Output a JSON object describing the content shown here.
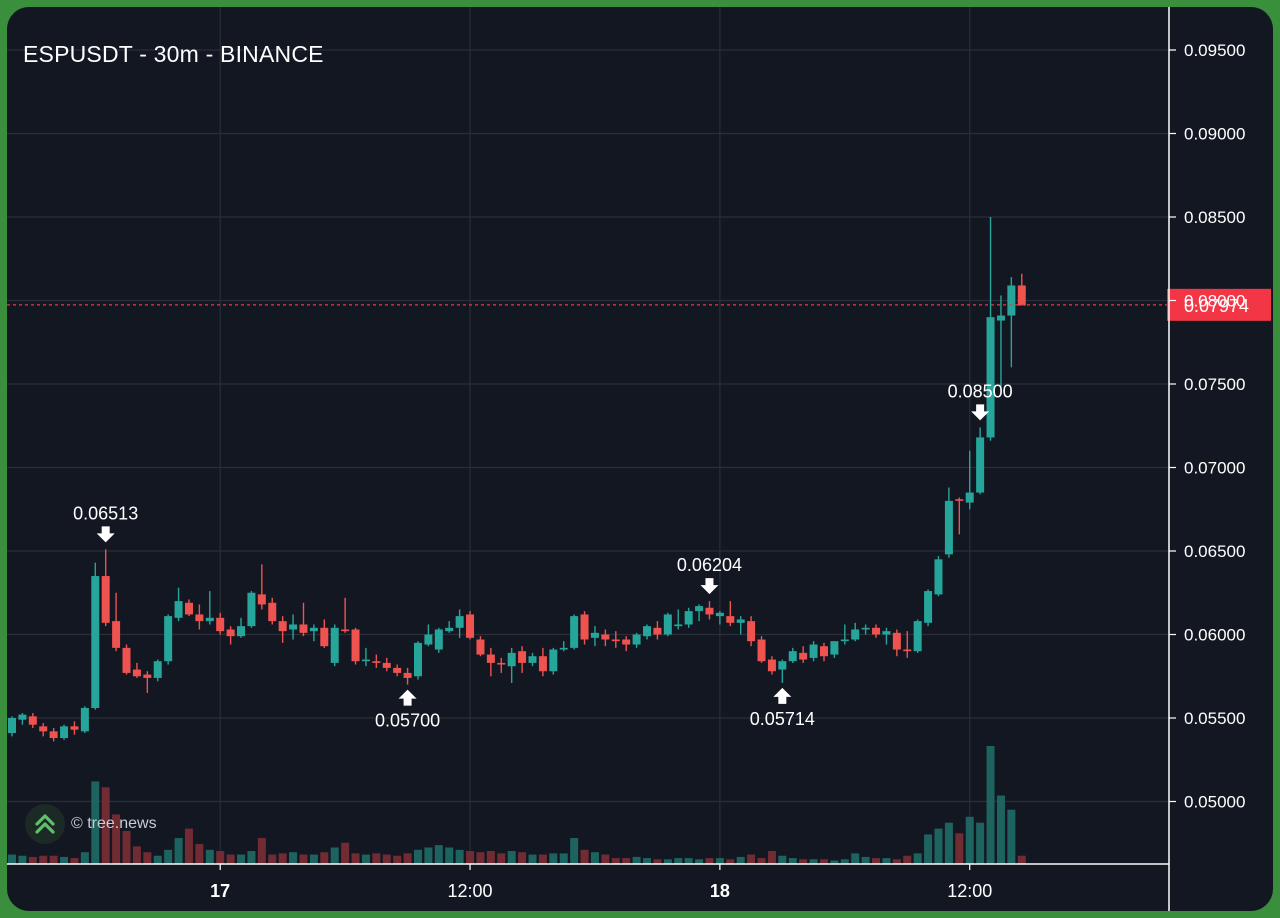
{
  "title": "ESPUSDT - 30m - BINANCE",
  "watermark": "© tree.news",
  "colors": {
    "background": "#131722",
    "up": "#26a69a",
    "down": "#ef5350",
    "grid": "#2a2e39",
    "text": "#ffffff",
    "last_price": "#f23645",
    "frame": "#3a8f3c"
  },
  "chart_data": {
    "type": "candlestick",
    "symbol": "ESPUSDT",
    "interval": "30m",
    "exchange": "BINANCE",
    "y_axis": {
      "ticks": [
        "0.09500",
        "0.09000",
        "0.08500",
        "0.08000",
        "0.07500",
        "0.07000",
        "0.06500",
        "0.06000",
        "0.05500",
        "0.05000"
      ],
      "min": 0.0464,
      "max": 0.0972
    },
    "x_axis": {
      "labels": [
        {
          "label": "17",
          "bold": true,
          "index": 20
        },
        {
          "label": "12:00",
          "bold": false,
          "index": 44
        },
        {
          "label": "18",
          "bold": true,
          "index": 68
        },
        {
          "label": "12:00",
          "bold": false,
          "index": 92
        }
      ]
    },
    "last_price": "0.07974",
    "last_price_value": 0.07974,
    "annotations": [
      {
        "label": "0.06513",
        "type": "high",
        "index": 9,
        "value": 0.06513
      },
      {
        "label": "0.05700",
        "type": "low",
        "index": 38,
        "value": 0.057
      },
      {
        "label": "0.06204",
        "type": "high",
        "index": 67,
        "value": 0.06204
      },
      {
        "label": "0.05714",
        "type": "low",
        "index": 74,
        "value": 0.05714
      },
      {
        "label": "0.08500",
        "type": "high",
        "index": 93,
        "value": 0.085
      }
    ],
    "candles": [
      [
        0.0541,
        0.0551,
        0.0539,
        0.055
      ],
      [
        0.0549,
        0.0553,
        0.0546,
        0.0552
      ],
      [
        0.0551,
        0.0553,
        0.0544,
        0.0546
      ],
      [
        0.0545,
        0.0547,
        0.0539,
        0.0542
      ],
      [
        0.0542,
        0.0544,
        0.0536,
        0.0538
      ],
      [
        0.0538,
        0.0546,
        0.0537,
        0.0545
      ],
      [
        0.0545,
        0.0548,
        0.054,
        0.0543
      ],
      [
        0.0542,
        0.0557,
        0.0541,
        0.0556
      ],
      [
        0.0556,
        0.0643,
        0.0555,
        0.0635
      ],
      [
        0.0635,
        0.0651,
        0.0605,
        0.0607
      ],
      [
        0.0608,
        0.0625,
        0.059,
        0.0592
      ],
      [
        0.0592,
        0.0594,
        0.0576,
        0.0577
      ],
      [
        0.0579,
        0.0583,
        0.0574,
        0.0575
      ],
      [
        0.0576,
        0.0578,
        0.0565,
        0.0574
      ],
      [
        0.0574,
        0.0585,
        0.0572,
        0.0584
      ],
      [
        0.0584,
        0.0612,
        0.0582,
        0.0611
      ],
      [
        0.061,
        0.0628,
        0.0608,
        0.062
      ],
      [
        0.0619,
        0.0621,
        0.0611,
        0.0612
      ],
      [
        0.0612,
        0.0618,
        0.0603,
        0.0608
      ],
      [
        0.0608,
        0.0626,
        0.0606,
        0.061
      ],
      [
        0.061,
        0.0613,
        0.06,
        0.0602
      ],
      [
        0.0603,
        0.0605,
        0.0594,
        0.0599
      ],
      [
        0.0599,
        0.061,
        0.0598,
        0.0605
      ],
      [
        0.0605,
        0.0626,
        0.0604,
        0.0625
      ],
      [
        0.0624,
        0.0642,
        0.0615,
        0.0618
      ],
      [
        0.0619,
        0.0622,
        0.0606,
        0.0608
      ],
      [
        0.0608,
        0.0611,
        0.0595,
        0.0602
      ],
      [
        0.0603,
        0.0612,
        0.0597,
        0.0606
      ],
      [
        0.0606,
        0.0619,
        0.0599,
        0.0601
      ],
      [
        0.0602,
        0.0606,
        0.0596,
        0.0604
      ],
      [
        0.0604,
        0.0609,
        0.0592,
        0.0593
      ],
      [
        0.0583,
        0.0606,
        0.0581,
        0.0604
      ],
      [
        0.0603,
        0.0622,
        0.0601,
        0.0602
      ],
      [
        0.0603,
        0.0604,
        0.0582,
        0.0584
      ],
      [
        0.0584,
        0.0592,
        0.0581,
        0.0585
      ],
      [
        0.0584,
        0.0588,
        0.058,
        0.0583
      ],
      [
        0.0583,
        0.0586,
        0.0578,
        0.058
      ],
      [
        0.058,
        0.0582,
        0.0575,
        0.0577
      ],
      [
        0.0577,
        0.058,
        0.057,
        0.0574
      ],
      [
        0.0575,
        0.0596,
        0.0573,
        0.0595
      ],
      [
        0.0594,
        0.0606,
        0.0593,
        0.06
      ],
      [
        0.0591,
        0.0604,
        0.0589,
        0.0603
      ],
      [
        0.0602,
        0.0608,
        0.0601,
        0.0604
      ],
      [
        0.0604,
        0.0615,
        0.0598,
        0.0611
      ],
      [
        0.0612,
        0.0614,
        0.0597,
        0.0598
      ],
      [
        0.0597,
        0.0599,
        0.0587,
        0.0588
      ],
      [
        0.0588,
        0.0592,
        0.0575,
        0.0583
      ],
      [
        0.0583,
        0.0586,
        0.0577,
        0.0582
      ],
      [
        0.0581,
        0.0592,
        0.0571,
        0.0589
      ],
      [
        0.059,
        0.0593,
        0.0577,
        0.0583
      ],
      [
        0.0583,
        0.0589,
        0.0581,
        0.0587
      ],
      [
        0.0587,
        0.0592,
        0.0575,
        0.0578
      ],
      [
        0.0578,
        0.0592,
        0.0576,
        0.0591
      ],
      [
        0.0591,
        0.0596,
        0.059,
        0.0592
      ],
      [
        0.0592,
        0.0612,
        0.0591,
        0.0611
      ],
      [
        0.0612,
        0.0614,
        0.0594,
        0.0597
      ],
      [
        0.0598,
        0.0605,
        0.0593,
        0.0601
      ],
      [
        0.06,
        0.0603,
        0.0593,
        0.0597
      ],
      [
        0.0597,
        0.0602,
        0.0592,
        0.0596
      ],
      [
        0.0597,
        0.0599,
        0.059,
        0.0594
      ],
      [
        0.0594,
        0.0601,
        0.0592,
        0.06
      ],
      [
        0.0599,
        0.0606,
        0.0597,
        0.0605
      ],
      [
        0.0604,
        0.0608,
        0.0597,
        0.06
      ],
      [
        0.06,
        0.0613,
        0.0599,
        0.0612
      ],
      [
        0.0605,
        0.0615,
        0.0603,
        0.0606
      ],
      [
        0.0606,
        0.0616,
        0.0604,
        0.0614
      ],
      [
        0.0614,
        0.0618,
        0.0608,
        0.0617
      ],
      [
        0.0616,
        0.062,
        0.0609,
        0.0612
      ],
      [
        0.0611,
        0.0614,
        0.0606,
        0.0613
      ],
      [
        0.0611,
        0.062,
        0.0605,
        0.0607
      ],
      [
        0.0607,
        0.0611,
        0.06,
        0.0609
      ],
      [
        0.0608,
        0.0611,
        0.0593,
        0.0596
      ],
      [
        0.0597,
        0.0599,
        0.0583,
        0.0584
      ],
      [
        0.0585,
        0.0587,
        0.0576,
        0.0578
      ],
      [
        0.0579,
        0.0585,
        0.0571,
        0.0584
      ],
      [
        0.0584,
        0.0592,
        0.0583,
        0.059
      ],
      [
        0.0589,
        0.0593,
        0.0583,
        0.0585
      ],
      [
        0.0586,
        0.0596,
        0.0584,
        0.0594
      ],
      [
        0.0593,
        0.0595,
        0.0584,
        0.0587
      ],
      [
        0.0588,
        0.0596,
        0.0586,
        0.0596
      ],
      [
        0.0596,
        0.0606,
        0.0594,
        0.0597
      ],
      [
        0.0597,
        0.0607,
        0.0596,
        0.0603
      ],
      [
        0.0603,
        0.0606,
        0.06,
        0.0604
      ],
      [
        0.0604,
        0.0606,
        0.0598,
        0.06
      ],
      [
        0.06,
        0.0604,
        0.0594,
        0.0602
      ],
      [
        0.0601,
        0.0603,
        0.0587,
        0.0591
      ],
      [
        0.0591,
        0.0602,
        0.0586,
        0.059
      ],
      [
        0.059,
        0.0609,
        0.0589,
        0.0608
      ],
      [
        0.0607,
        0.0627,
        0.0605,
        0.0626
      ],
      [
        0.0624,
        0.0647,
        0.0623,
        0.0645
      ],
      [
        0.0648,
        0.0688,
        0.0646,
        0.068
      ],
      [
        0.0681,
        0.0682,
        0.066,
        0.068
      ],
      [
        0.0679,
        0.071,
        0.0675,
        0.0685
      ],
      [
        0.0685,
        0.0724,
        0.0684,
        0.0718
      ],
      [
        0.0718,
        0.085,
        0.0716,
        0.079
      ],
      [
        0.0788,
        0.0803,
        0.0748,
        0.0791
      ],
      [
        0.0791,
        0.0814,
        0.076,
        0.0809
      ],
      [
        0.0809,
        0.0816,
        0.0798,
        0.0797
      ]
    ],
    "volume": {
      "max": 100,
      "values": [
        8,
        7,
        6,
        7,
        7,
        6,
        5,
        10,
        70,
        65,
        42,
        28,
        15,
        10,
        7,
        12,
        22,
        30,
        17,
        12,
        11,
        8,
        8,
        11,
        22,
        8,
        9,
        10,
        8,
        8,
        10,
        14,
        18,
        9,
        8,
        9,
        8,
        7,
        9,
        12,
        14,
        16,
        14,
        12,
        11,
        10,
        11,
        9,
        11,
        10,
        8,
        8,
        9,
        9,
        22,
        12,
        10,
        8,
        5,
        5,
        6,
        5,
        4,
        4,
        5,
        5,
        4,
        5,
        5,
        4,
        6,
        8,
        5,
        11,
        7,
        5,
        4,
        4,
        4,
        3,
        4,
        9,
        6,
        5,
        5,
        4,
        7,
        9,
        25,
        30,
        35,
        26,
        40,
        35,
        100,
        58,
        46,
        7
      ]
    }
  }
}
